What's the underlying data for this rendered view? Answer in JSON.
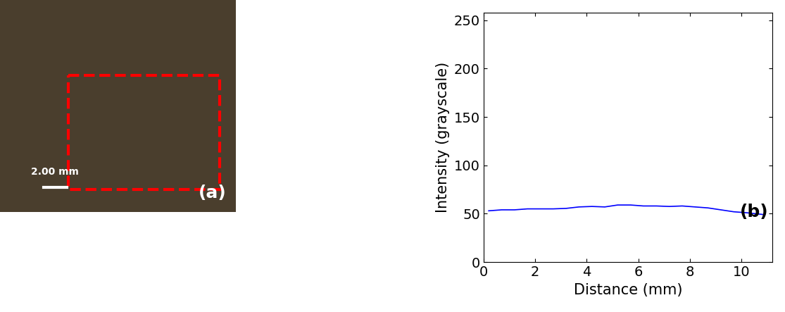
{
  "chart_data": [
    {
      "type": "image",
      "color": "#4a3e2d",
      "annotations": [
        "2.00 mm",
        "(a)"
      ]
    },
    {
      "type": "line",
      "x_label": "Distance (mm)",
      "y_label": "Intensity (grayscale)",
      "annotations": [
        "(b)"
      ],
      "x": [
        0.2,
        0.7,
        1.2,
        1.7,
        2.2,
        2.7,
        3.2,
        3.7,
        4.2,
        4.7,
        5.2,
        5.7,
        6.2,
        6.7,
        7.2,
        7.7,
        8.2,
        8.7,
        9.2,
        9.7,
        10.2,
        10.9
      ],
      "values": [
        53,
        54,
        54,
        55,
        55,
        55,
        55.5,
        57,
        57.5,
        57,
        59,
        59,
        58,
        58,
        57.5,
        58,
        57,
        56,
        54,
        52,
        51,
        49
      ],
      "color": "#0000ff",
      "xlim": [
        0,
        11.2
      ],
      "ylim": [
        0,
        258
      ],
      "xticks": [
        0,
        2,
        4,
        6,
        8,
        10
      ],
      "yticks": [
        0,
        50,
        100,
        150,
        200,
        250
      ]
    }
  ]
}
